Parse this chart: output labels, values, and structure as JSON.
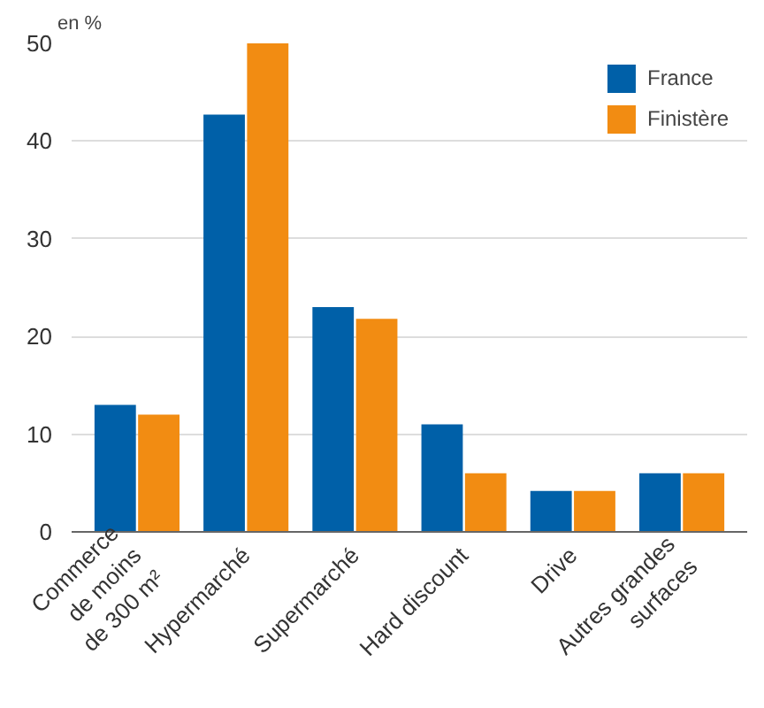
{
  "chart_data": {
    "type": "bar",
    "ylabel": "en %",
    "categories": [
      "Commerce\nde moins\nde 300 m²",
      "Hypermarché",
      "Supermarché",
      "Hard discount",
      "Drive",
      "Autres grandes\nsurfaces"
    ],
    "series": [
      {
        "name": "France",
        "color": "#0060a8",
        "values": [
          13,
          42.7,
          23,
          11,
          4.2,
          6
        ]
      },
      {
        "name": "Finistère",
        "color": "#f28c12",
        "values": [
          12,
          50,
          21.8,
          6,
          4.2,
          6
        ]
      }
    ],
    "ylim": [
      0,
      50
    ],
    "yticks": [
      0,
      10,
      20,
      30,
      40,
      50
    ],
    "grid": "y",
    "legend": "top right"
  }
}
